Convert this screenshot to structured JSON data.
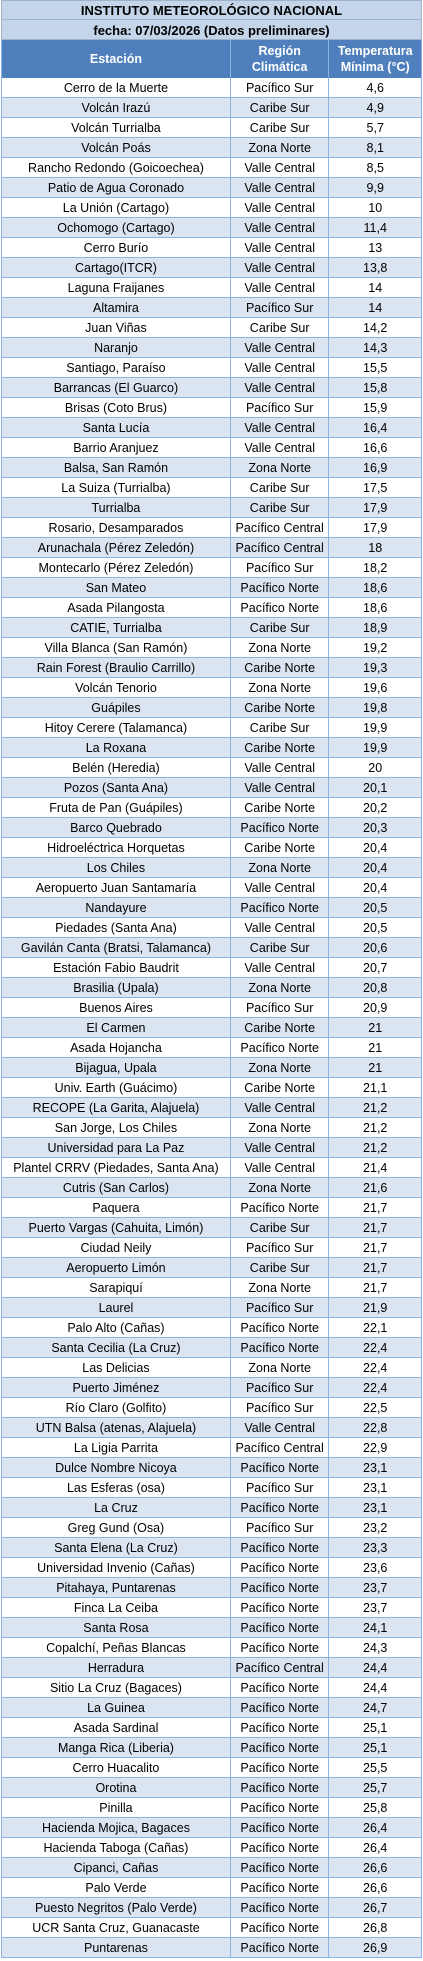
{
  "header": {
    "title": "INSTITUTO METEOROLÓGICO NACIONAL",
    "subtitle": "fecha: 07/03/2026 (Datos preliminares)"
  },
  "columns": {
    "station": "Estación",
    "region": "Región Climática",
    "temperature": "Temperatura Mínima (°C)"
  },
  "colors": {
    "title_bg": "#c4d5ea",
    "header_bg": "#4f80bd",
    "row_alt_bg": "#dbe5f1",
    "grid": "#8db3e2"
  },
  "rows": [
    {
      "station": "Cerro de la Muerte",
      "region": "Pacífico Sur",
      "temp": "4,6"
    },
    {
      "station": "Volcán Irazú",
      "region": "Caribe Sur",
      "temp": "4,9"
    },
    {
      "station": "Volcán Turrialba",
      "region": "Caribe Sur",
      "temp": "5,7"
    },
    {
      "station": "Volcán Poás",
      "region": "Zona Norte",
      "temp": "8,1"
    },
    {
      "station": "Rancho Redondo (Goicoechea)",
      "region": "Valle Central",
      "temp": "8,5"
    },
    {
      "station": "Patio de Agua Coronado",
      "region": "Valle Central",
      "temp": "9,9"
    },
    {
      "station": "La Unión (Cartago)",
      "region": "Valle Central",
      "temp": "10"
    },
    {
      "station": "Ochomogo (Cartago)",
      "region": "Valle Central",
      "temp": "11,4"
    },
    {
      "station": "Cerro Burío",
      "region": "Valle Central",
      "temp": "13"
    },
    {
      "station": "Cartago(ITCR)",
      "region": "Valle Central",
      "temp": "13,8"
    },
    {
      "station": "Laguna Fraijanes",
      "region": "Valle Central",
      "temp": "14"
    },
    {
      "station": "Altamira",
      "region": "Pacífico Sur",
      "temp": "14"
    },
    {
      "station": "Juan Viñas",
      "region": "Caribe Sur",
      "temp": "14,2"
    },
    {
      "station": "Naranjo",
      "region": "Valle Central",
      "temp": "14,3"
    },
    {
      "station": "Santiago, Paraíso",
      "region": "Valle Central",
      "temp": "15,5"
    },
    {
      "station": "Barrancas (El Guarco)",
      "region": "Valle Central",
      "temp": "15,8"
    },
    {
      "station": "Brisas (Coto Brus)",
      "region": "Pacífico Sur",
      "temp": "15,9"
    },
    {
      "station": "Santa Lucía",
      "region": "Valle Central",
      "temp": "16,4"
    },
    {
      "station": "Barrio Aranjuez",
      "region": "Valle Central",
      "temp": "16,6"
    },
    {
      "station": "Balsa, San Ramón",
      "region": "Zona Norte",
      "temp": "16,9"
    },
    {
      "station": "La Suiza (Turrialba)",
      "region": "Caribe Sur",
      "temp": "17,5"
    },
    {
      "station": "Turrialba",
      "region": "Caribe Sur",
      "temp": "17,9"
    },
    {
      "station": "Rosario, Desamparados",
      "region": "Pacífico Central",
      "temp": "17,9"
    },
    {
      "station": "Arunachala (Pérez Zeledón)",
      "region": "Pacífico Central",
      "temp": "18"
    },
    {
      "station": "Montecarlo (Pérez Zeledón)",
      "region": "Pacífico Sur",
      "temp": "18,2"
    },
    {
      "station": "San Mateo",
      "region": "Pacífico Norte",
      "temp": "18,6"
    },
    {
      "station": "Asada Pilangosta",
      "region": "Pacífico Norte",
      "temp": "18,6"
    },
    {
      "station": "CATIE, Turrialba",
      "region": "Caribe Sur",
      "temp": "18,9"
    },
    {
      "station": "Villa Blanca (San Ramón)",
      "region": "Zona Norte",
      "temp": "19,2"
    },
    {
      "station": "Rain Forest (Braulio Carrillo)",
      "region": "Caribe Norte",
      "temp": "19,3"
    },
    {
      "station": "Volcán Tenorio",
      "region": "Zona Norte",
      "temp": "19,6"
    },
    {
      "station": "Guápiles",
      "region": "Caribe Norte",
      "temp": "19,8"
    },
    {
      "station": "Hitoy Cerere (Talamanca)",
      "region": "Caribe Sur",
      "temp": "19,9"
    },
    {
      "station": "La Roxana",
      "region": "Caribe Norte",
      "temp": "19,9"
    },
    {
      "station": "Belén (Heredia)",
      "region": "Valle Central",
      "temp": "20"
    },
    {
      "station": "Pozos (Santa Ana)",
      "region": "Valle Central",
      "temp": "20,1"
    },
    {
      "station": "Fruta de Pan (Guápiles)",
      "region": "Caribe Norte",
      "temp": "20,2"
    },
    {
      "station": "Barco Quebrado",
      "region": "Pacífico Norte",
      "temp": "20,3"
    },
    {
      "station": "Hidroeléctrica Horquetas",
      "region": "Caribe Norte",
      "temp": "20,4"
    },
    {
      "station": "Los Chiles",
      "region": "Zona Norte",
      "temp": "20,4"
    },
    {
      "station": "Aeropuerto Juan Santamaría",
      "region": "Valle Central",
      "temp": "20,4"
    },
    {
      "station": "Nandayure",
      "region": "Pacífico Norte",
      "temp": "20,5"
    },
    {
      "station": "Piedades (Santa Ana)",
      "region": "Valle Central",
      "temp": "20,5"
    },
    {
      "station": "Gavilán Canta (Bratsi, Talamanca)",
      "region": "Caribe Sur",
      "temp": "20,6"
    },
    {
      "station": "Estación Fabio Baudrit",
      "region": "Valle Central",
      "temp": "20,7"
    },
    {
      "station": "Brasilia (Upala)",
      "region": "Zona Norte",
      "temp": "20,8"
    },
    {
      "station": "Buenos Aires",
      "region": "Pacífico Sur",
      "temp": "20,9"
    },
    {
      "station": "El Carmen",
      "region": "Caribe Norte",
      "temp": "21"
    },
    {
      "station": "Asada Hojancha",
      "region": "Pacífico Norte",
      "temp": "21"
    },
    {
      "station": "Bijagua, Upala",
      "region": "Zona Norte",
      "temp": "21"
    },
    {
      "station": "Univ. Earth (Guácimo)",
      "region": "Caribe Norte",
      "temp": "21,1"
    },
    {
      "station": "RECOPE (La Garita, Alajuela)",
      "region": "Valle Central",
      "temp": "21,2"
    },
    {
      "station": "San Jorge, Los Chiles",
      "region": "Zona Norte",
      "temp": "21,2"
    },
    {
      "station": "Universidad para La Paz",
      "region": "Valle Central",
      "temp": "21,2"
    },
    {
      "station": "Plantel CRRV (Piedades, Santa Ana)",
      "region": "Valle Central",
      "temp": "21,4"
    },
    {
      "station": "Cutris (San Carlos)",
      "region": "Zona Norte",
      "temp": "21,6"
    },
    {
      "station": "Paquera",
      "region": "Pacífico Norte",
      "temp": "21,7"
    },
    {
      "station": "Puerto Vargas (Cahuita, Limón)",
      "region": "Caribe Sur",
      "temp": "21,7"
    },
    {
      "station": "Ciudad Neily",
      "region": "Pacífico Sur",
      "temp": "21,7"
    },
    {
      "station": "Aeropuerto Limón",
      "region": "Caribe Sur",
      "temp": "21,7"
    },
    {
      "station": "Sarapiquí",
      "region": "Zona Norte",
      "temp": "21,7"
    },
    {
      "station": "Laurel",
      "region": "Pacífico Sur",
      "temp": "21,9"
    },
    {
      "station": "Palo Alto (Cañas)",
      "region": "Pacífico Norte",
      "temp": "22,1"
    },
    {
      "station": "Santa Cecilia (La Cruz)",
      "region": "Pacífico Norte",
      "temp": "22,4"
    },
    {
      "station": "Las Delicias",
      "region": "Zona Norte",
      "temp": "22,4"
    },
    {
      "station": "Puerto Jiménez",
      "region": "Pacífico Sur",
      "temp": "22,4"
    },
    {
      "station": "Río Claro (Golfito)",
      "region": "Pacífico Sur",
      "temp": "22,5"
    },
    {
      "station": "UTN Balsa (atenas, Alajuela)",
      "region": "Valle Central",
      "temp": "22,8"
    },
    {
      "station": "La Ligia Parrita",
      "region": "Pacífico Central",
      "temp": "22,9"
    },
    {
      "station": "Dulce Nombre Nicoya",
      "region": "Pacífico Norte",
      "temp": "23,1"
    },
    {
      "station": "Las Esferas (osa)",
      "region": "Pacífico Sur",
      "temp": "23,1"
    },
    {
      "station": "La Cruz",
      "region": "Pacífico Norte",
      "temp": "23,1"
    },
    {
      "station": "Greg Gund (Osa)",
      "region": "Pacífico Sur",
      "temp": "23,2"
    },
    {
      "station": "Santa Elena (La Cruz)",
      "region": "Pacífico Norte",
      "temp": "23,3"
    },
    {
      "station": "Universidad Invenio (Cañas)",
      "region": "Pacífico Norte",
      "temp": "23,6"
    },
    {
      "station": "Pitahaya, Puntarenas",
      "region": "Pacífico Norte",
      "temp": "23,7"
    },
    {
      "station": "Finca La Ceiba",
      "region": "Pacífico Norte",
      "temp": "23,7"
    },
    {
      "station": "Santa Rosa",
      "region": "Pacífico Norte",
      "temp": "24,1"
    },
    {
      "station": "Copalchí, Peñas Blancas",
      "region": "Pacífico Norte",
      "temp": "24,3"
    },
    {
      "station": "Herradura",
      "region": "Pacífico Central",
      "temp": "24,4"
    },
    {
      "station": "Sitio La Cruz (Bagaces)",
      "region": "Pacífico Norte",
      "temp": "24,4"
    },
    {
      "station": "La Guinea",
      "region": "Pacífico Norte",
      "temp": "24,7"
    },
    {
      "station": "Asada Sardinal",
      "region": "Pacífico Norte",
      "temp": "25,1"
    },
    {
      "station": "Manga Rica (Liberia)",
      "region": "Pacífico Norte",
      "temp": "25,1"
    },
    {
      "station": "Cerro Huacalito",
      "region": "Pacífico Norte",
      "temp": "25,5"
    },
    {
      "station": "Orotina",
      "region": "Pacífico Norte",
      "temp": "25,7"
    },
    {
      "station": "Pinilla",
      "region": "Pacífico Norte",
      "temp": "25,8"
    },
    {
      "station": "Hacienda Mojica, Bagaces",
      "region": "Pacífico Norte",
      "temp": "26,4"
    },
    {
      "station": "Hacienda Taboga (Cañas)",
      "region": "Pacífico Norte",
      "temp": "26,4"
    },
    {
      "station": "Cipanci, Cañas",
      "region": "Pacífico Norte",
      "temp": "26,6"
    },
    {
      "station": "Palo Verde",
      "region": "Pacífico Norte",
      "temp": "26,6"
    },
    {
      "station": "Puesto Negritos (Palo Verde)",
      "region": "Pacífico Norte",
      "temp": "26,7"
    },
    {
      "station": "UCR Santa Cruz, Guanacaste",
      "region": "Pacífico Norte",
      "temp": "26,8"
    },
    {
      "station": "Puntarenas",
      "region": "Pacífico Norte",
      "temp": "26,9"
    }
  ]
}
